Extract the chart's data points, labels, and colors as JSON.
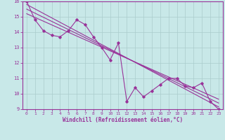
{
  "title": "",
  "xlabel": "Windchill (Refroidissement éolien,°C)",
  "xlim": [
    -0.5,
    23.5
  ],
  "ylim": [
    9,
    16
  ],
  "yticks": [
    9,
    10,
    11,
    12,
    13,
    14,
    15,
    16
  ],
  "xticks": [
    0,
    1,
    2,
    3,
    4,
    5,
    6,
    7,
    8,
    9,
    10,
    11,
    12,
    13,
    14,
    15,
    16,
    17,
    18,
    19,
    20,
    21,
    22,
    23
  ],
  "bg_color": "#c8e8e8",
  "line_color": "#993399",
  "grid_color": "#aacccc",
  "main_line": {
    "x": [
      0,
      1,
      2,
      3,
      4,
      5,
      6,
      7,
      8,
      9,
      10,
      11,
      12,
      13,
      14,
      15,
      16,
      17,
      18,
      19,
      20,
      21,
      22,
      23
    ],
    "y": [
      16.0,
      14.8,
      14.1,
      13.8,
      13.7,
      14.1,
      14.8,
      14.5,
      13.7,
      13.0,
      12.2,
      13.3,
      9.5,
      10.4,
      9.8,
      10.2,
      10.6,
      11.0,
      11.0,
      10.5,
      10.4,
      10.7,
      9.5,
      9.0
    ]
  },
  "trend_lines": [
    {
      "x": [
        0,
        23
      ],
      "y": [
        15.8,
        9.15
      ]
    },
    {
      "x": [
        0,
        23
      ],
      "y": [
        15.5,
        9.4
      ]
    },
    {
      "x": [
        0,
        23
      ],
      "y": [
        15.2,
        9.65
      ]
    }
  ]
}
